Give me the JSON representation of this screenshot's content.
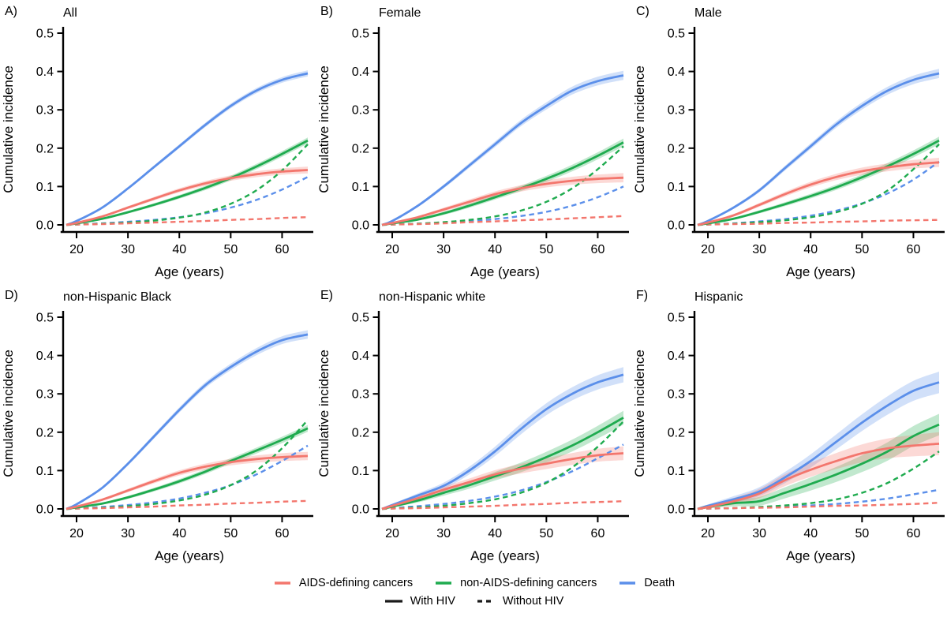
{
  "colors": {
    "red": "#F3766D",
    "green": "#1FAB4F",
    "blue": "#5B8FEA",
    "black": "#1a1a1a"
  },
  "legend": {
    "items": [
      {
        "label": "AIDS-defining cancers",
        "color": "red"
      },
      {
        "label": "non-AIDS-defining cancers",
        "color": "green"
      },
      {
        "label": "Death",
        "color": "blue"
      }
    ],
    "line_types": [
      {
        "label": "With HIV",
        "style": "solid"
      },
      {
        "label": "Without HIV",
        "style": "dashed"
      }
    ]
  },
  "chart_data": [
    {
      "type": "line",
      "letter": "A)",
      "title": "All",
      "xlabel": "Age (years)",
      "ylabel": "Cumulative incidence",
      "xlim": [
        18,
        65
      ],
      "ylim": [
        0,
        0.5
      ],
      "xticks": [
        20,
        30,
        40,
        50,
        60
      ],
      "yticks": [
        0.0,
        0.1,
        0.2,
        0.3,
        0.4,
        0.5
      ],
      "x": [
        18,
        20,
        25,
        30,
        35,
        40,
        45,
        50,
        55,
        60,
        65
      ],
      "series": [
        {
          "name": "Death",
          "hiv": "With HIV",
          "style": "solid",
          "color": "blue",
          "ci": 0.008,
          "values": [
            0,
            0.01,
            0.045,
            0.095,
            0.15,
            0.205,
            0.26,
            0.31,
            0.35,
            0.378,
            0.395
          ]
        },
        {
          "name": "non-AIDS-defining cancers",
          "hiv": "With HIV",
          "style": "solid",
          "color": "green",
          "ci": 0.008,
          "values": [
            0,
            0.004,
            0.016,
            0.033,
            0.052,
            0.073,
            0.096,
            0.122,
            0.152,
            0.185,
            0.22
          ]
        },
        {
          "name": "AIDS-defining cancers",
          "hiv": "With HIV",
          "style": "solid",
          "color": "red",
          "ci": 0.009,
          "values": [
            0,
            0.005,
            0.022,
            0.045,
            0.068,
            0.09,
            0.108,
            0.122,
            0.132,
            0.139,
            0.143
          ]
        },
        {
          "name": "Death",
          "hiv": "Without HIV",
          "style": "dashed",
          "color": "blue",
          "values": [
            0,
            0.001,
            0.004,
            0.008,
            0.013,
            0.02,
            0.03,
            0.045,
            0.065,
            0.092,
            0.125
          ]
        },
        {
          "name": "non-AIDS-defining cancers",
          "hiv": "Without HIV",
          "style": "dashed",
          "color": "green",
          "values": [
            0,
            0.001,
            0.003,
            0.006,
            0.011,
            0.019,
            0.032,
            0.055,
            0.09,
            0.142,
            0.21
          ]
        },
        {
          "name": "AIDS-defining cancers",
          "hiv": "Without HIV",
          "style": "dashed",
          "color": "red",
          "values": [
            0,
            0.001,
            0.002,
            0.004,
            0.006,
            0.008,
            0.01,
            0.013,
            0.015,
            0.018,
            0.02
          ]
        }
      ]
    },
    {
      "type": "line",
      "letter": "B)",
      "title": "Female",
      "xlabel": "Age (years)",
      "ylabel": "Cumulative incidence",
      "xlim": [
        18,
        65
      ],
      "ylim": [
        0,
        0.5
      ],
      "xticks": [
        20,
        30,
        40,
        50,
        60
      ],
      "yticks": [
        0.0,
        0.1,
        0.2,
        0.3,
        0.4,
        0.5
      ],
      "x": [
        18,
        20,
        25,
        30,
        35,
        40,
        45,
        50,
        55,
        60,
        65
      ],
      "series": [
        {
          "name": "Death",
          "hiv": "With HIV",
          "style": "solid",
          "color": "blue",
          "ci": 0.012,
          "values": [
            0,
            0.01,
            0.05,
            0.1,
            0.155,
            0.21,
            0.265,
            0.31,
            0.35,
            0.375,
            0.39
          ]
        },
        {
          "name": "non-AIDS-defining cancers",
          "hiv": "With HIV",
          "style": "solid",
          "color": "green",
          "ci": 0.01,
          "values": [
            0,
            0.004,
            0.014,
            0.03,
            0.05,
            0.072,
            0.095,
            0.12,
            0.148,
            0.18,
            0.215
          ]
        },
        {
          "name": "AIDS-defining cancers",
          "hiv": "With HIV",
          "style": "solid",
          "color": "red",
          "ci": 0.012,
          "values": [
            0,
            0.005,
            0.02,
            0.04,
            0.06,
            0.08,
            0.095,
            0.107,
            0.115,
            0.12,
            0.123
          ]
        },
        {
          "name": "Death",
          "hiv": "Without HIV",
          "style": "dashed",
          "color": "blue",
          "values": [
            0,
            0.001,
            0.003,
            0.006,
            0.01,
            0.015,
            0.023,
            0.034,
            0.05,
            0.072,
            0.1
          ]
        },
        {
          "name": "non-AIDS-defining cancers",
          "hiv": "Without HIV",
          "style": "dashed",
          "color": "green",
          "values": [
            0,
            0.001,
            0.003,
            0.007,
            0.013,
            0.022,
            0.037,
            0.06,
            0.095,
            0.145,
            0.205
          ]
        },
        {
          "name": "AIDS-defining cancers",
          "hiv": "Without HIV",
          "style": "dashed",
          "color": "red",
          "values": [
            0,
            0.001,
            0.002,
            0.004,
            0.007,
            0.009,
            0.012,
            0.014,
            0.017,
            0.02,
            0.023
          ]
        }
      ]
    },
    {
      "type": "line",
      "letter": "C)",
      "title": "Male",
      "xlabel": "Age (years)",
      "ylabel": "Cumulative incidence",
      "xlim": [
        18,
        65
      ],
      "ylim": [
        0,
        0.5
      ],
      "xticks": [
        20,
        30,
        40,
        50,
        60
      ],
      "yticks": [
        0.0,
        0.1,
        0.2,
        0.3,
        0.4,
        0.5
      ],
      "x": [
        18,
        20,
        25,
        30,
        35,
        40,
        45,
        50,
        55,
        60,
        65
      ],
      "series": [
        {
          "name": "Death",
          "hiv": "With HIV",
          "style": "solid",
          "color": "blue",
          "ci": 0.012,
          "values": [
            0,
            0.01,
            0.045,
            0.09,
            0.148,
            0.205,
            0.262,
            0.31,
            0.35,
            0.378,
            0.395
          ]
        },
        {
          "name": "non-AIDS-defining cancers",
          "hiv": "With HIV",
          "style": "solid",
          "color": "green",
          "ci": 0.01,
          "values": [
            0,
            0.004,
            0.016,
            0.034,
            0.054,
            0.075,
            0.098,
            0.124,
            0.153,
            0.185,
            0.22
          ]
        },
        {
          "name": "AIDS-defining cancers",
          "hiv": "With HIV",
          "style": "solid",
          "color": "red",
          "ci": 0.012,
          "values": [
            0,
            0.006,
            0.025,
            0.052,
            0.08,
            0.105,
            0.125,
            0.14,
            0.15,
            0.158,
            0.163
          ]
        },
        {
          "name": "Death",
          "hiv": "Without HIV",
          "style": "dashed",
          "color": "blue",
          "values": [
            0,
            0.001,
            0.004,
            0.009,
            0.015,
            0.024,
            0.037,
            0.056,
            0.082,
            0.118,
            0.165
          ]
        },
        {
          "name": "non-AIDS-defining cancers",
          "hiv": "Without HIV",
          "style": "dashed",
          "color": "green",
          "values": [
            0,
            0.001,
            0.003,
            0.007,
            0.012,
            0.02,
            0.033,
            0.055,
            0.09,
            0.145,
            0.21
          ]
        },
        {
          "name": "AIDS-defining cancers",
          "hiv": "Without HIV",
          "style": "dashed",
          "color": "red",
          "values": [
            0,
            0.001,
            0.002,
            0.003,
            0.005,
            0.006,
            0.008,
            0.009,
            0.011,
            0.012,
            0.013
          ]
        }
      ]
    },
    {
      "type": "line",
      "letter": "D)",
      "title": "non-Hispanic Black",
      "xlabel": "Age (years)",
      "ylabel": "Cumulative incidence",
      "xlim": [
        18,
        65
      ],
      "ylim": [
        0,
        0.5
      ],
      "xticks": [
        20,
        30,
        40,
        50,
        60
      ],
      "yticks": [
        0.0,
        0.1,
        0.2,
        0.3,
        0.4,
        0.5
      ],
      "x": [
        18,
        20,
        25,
        30,
        35,
        40,
        45,
        50,
        55,
        60,
        65
      ],
      "series": [
        {
          "name": "Death",
          "hiv": "With HIV",
          "style": "solid",
          "color": "blue",
          "ci": 0.011,
          "values": [
            0,
            0.012,
            0.055,
            0.118,
            0.188,
            0.258,
            0.322,
            0.37,
            0.41,
            0.44,
            0.455
          ]
        },
        {
          "name": "non-AIDS-defining cancers",
          "hiv": "With HIV",
          "style": "solid",
          "color": "green",
          "ci": 0.009,
          "values": [
            0,
            0.004,
            0.014,
            0.03,
            0.05,
            0.072,
            0.097,
            0.125,
            0.152,
            0.18,
            0.21
          ]
        },
        {
          "name": "AIDS-defining cancers",
          "hiv": "With HIV",
          "style": "solid",
          "color": "red",
          "ci": 0.011,
          "values": [
            0,
            0.006,
            0.024,
            0.048,
            0.072,
            0.094,
            0.11,
            0.122,
            0.13,
            0.135,
            0.138
          ]
        },
        {
          "name": "Death",
          "hiv": "Without HIV",
          "style": "dashed",
          "color": "blue",
          "values": [
            0,
            0.001,
            0.005,
            0.01,
            0.017,
            0.027,
            0.042,
            0.062,
            0.09,
            0.125,
            0.165
          ]
        },
        {
          "name": "non-AIDS-defining cancers",
          "hiv": "Without HIV",
          "style": "dashed",
          "color": "green",
          "values": [
            0,
            0.001,
            0.003,
            0.007,
            0.013,
            0.022,
            0.037,
            0.062,
            0.1,
            0.158,
            0.232
          ]
        },
        {
          "name": "AIDS-defining cancers",
          "hiv": "Without HIV",
          "style": "dashed",
          "color": "red",
          "values": [
            0,
            0.001,
            0.002,
            0.004,
            0.006,
            0.009,
            0.011,
            0.014,
            0.016,
            0.019,
            0.021
          ]
        }
      ]
    },
    {
      "type": "line",
      "letter": "E)",
      "title": "non-Hispanic white",
      "xlabel": "Age (years)",
      "ylabel": "Cumulative incidence",
      "xlim": [
        18,
        65
      ],
      "ylim": [
        0,
        0.5
      ],
      "xticks": [
        20,
        30,
        40,
        50,
        60
      ],
      "yticks": [
        0.0,
        0.1,
        0.2,
        0.3,
        0.4,
        0.5
      ],
      "x": [
        18,
        20,
        25,
        30,
        35,
        40,
        45,
        50,
        55,
        60,
        65
      ],
      "series": [
        {
          "name": "Death",
          "hiv": "With HIV",
          "style": "solid",
          "color": "blue",
          "ci": 0.02,
          "values": [
            0,
            0.01,
            0.035,
            0.06,
            0.1,
            0.15,
            0.208,
            0.26,
            0.3,
            0.33,
            0.35
          ]
        },
        {
          "name": "non-AIDS-defining cancers",
          "hiv": "With HIV",
          "style": "solid",
          "color": "green",
          "ci": 0.018,
          "values": [
            0,
            0.006,
            0.022,
            0.042,
            0.062,
            0.085,
            0.108,
            0.135,
            0.165,
            0.2,
            0.238
          ]
        },
        {
          "name": "AIDS-defining cancers",
          "hiv": "With HIV",
          "style": "solid",
          "color": "red",
          "ci": 0.018,
          "values": [
            0,
            0.008,
            0.028,
            0.05,
            0.07,
            0.09,
            0.105,
            0.118,
            0.13,
            0.14,
            0.145
          ]
        },
        {
          "name": "Death",
          "hiv": "Without HIV",
          "style": "dashed",
          "color": "blue",
          "values": [
            0,
            0.002,
            0.007,
            0.013,
            0.021,
            0.032,
            0.048,
            0.07,
            0.098,
            0.132,
            0.168
          ]
        },
        {
          "name": "non-AIDS-defining cancers",
          "hiv": "Without HIV",
          "style": "dashed",
          "color": "green",
          "values": [
            0,
            0.001,
            0.004,
            0.008,
            0.015,
            0.025,
            0.042,
            0.068,
            0.108,
            0.162,
            0.228
          ]
        },
        {
          "name": "AIDS-defining cancers",
          "hiv": "Without HIV",
          "style": "dashed",
          "color": "red",
          "values": [
            0,
            0.001,
            0.002,
            0.004,
            0.006,
            0.008,
            0.011,
            0.013,
            0.016,
            0.018,
            0.02
          ]
        }
      ]
    },
    {
      "type": "line",
      "letter": "F)",
      "title": "Hispanic",
      "xlabel": "Age (years)",
      "ylabel": "Cumulative incidence",
      "xlim": [
        18,
        65
      ],
      "ylim": [
        0,
        0.5
      ],
      "xticks": [
        20,
        30,
        40,
        50,
        60
      ],
      "yticks": [
        0.0,
        0.1,
        0.2,
        0.3,
        0.4,
        0.5
      ],
      "x": [
        18,
        20,
        25,
        30,
        35,
        40,
        45,
        50,
        55,
        60,
        65
      ],
      "series": [
        {
          "name": "Death",
          "hiv": "With HIV",
          "style": "solid",
          "color": "blue",
          "ci": 0.028,
          "values": [
            0,
            0.008,
            0.025,
            0.045,
            0.082,
            0.125,
            0.175,
            0.225,
            0.27,
            0.308,
            0.33
          ]
        },
        {
          "name": "non-AIDS-defining cancers",
          "hiv": "With HIV",
          "style": "solid",
          "color": "green",
          "ci": 0.028,
          "values": [
            0,
            0.005,
            0.015,
            0.02,
            0.042,
            0.065,
            0.09,
            0.118,
            0.15,
            0.19,
            0.22
          ]
        },
        {
          "name": "AIDS-defining cancers",
          "hiv": "With HIV",
          "style": "solid",
          "color": "red",
          "ci": 0.03,
          "values": [
            0,
            0.005,
            0.02,
            0.04,
            0.075,
            0.102,
            0.125,
            0.145,
            0.158,
            0.165,
            0.17
          ]
        },
        {
          "name": "Death",
          "hiv": "Without HIV",
          "style": "dashed",
          "color": "blue",
          "values": [
            0,
            0.001,
            0.002,
            0.004,
            0.006,
            0.009,
            0.013,
            0.019,
            0.027,
            0.038,
            0.05
          ]
        },
        {
          "name": "non-AIDS-defining cancers",
          "hiv": "Without HIV",
          "style": "dashed",
          "color": "green",
          "values": [
            0,
            0.001,
            0.002,
            0.005,
            0.009,
            0.015,
            0.025,
            0.042,
            0.068,
            0.105,
            0.15
          ]
        },
        {
          "name": "AIDS-defining cancers",
          "hiv": "Without HIV",
          "style": "dashed",
          "color": "red",
          "values": [
            0,
            0.001,
            0.002,
            0.003,
            0.004,
            0.006,
            0.008,
            0.009,
            0.011,
            0.013,
            0.016
          ]
        }
      ]
    }
  ]
}
